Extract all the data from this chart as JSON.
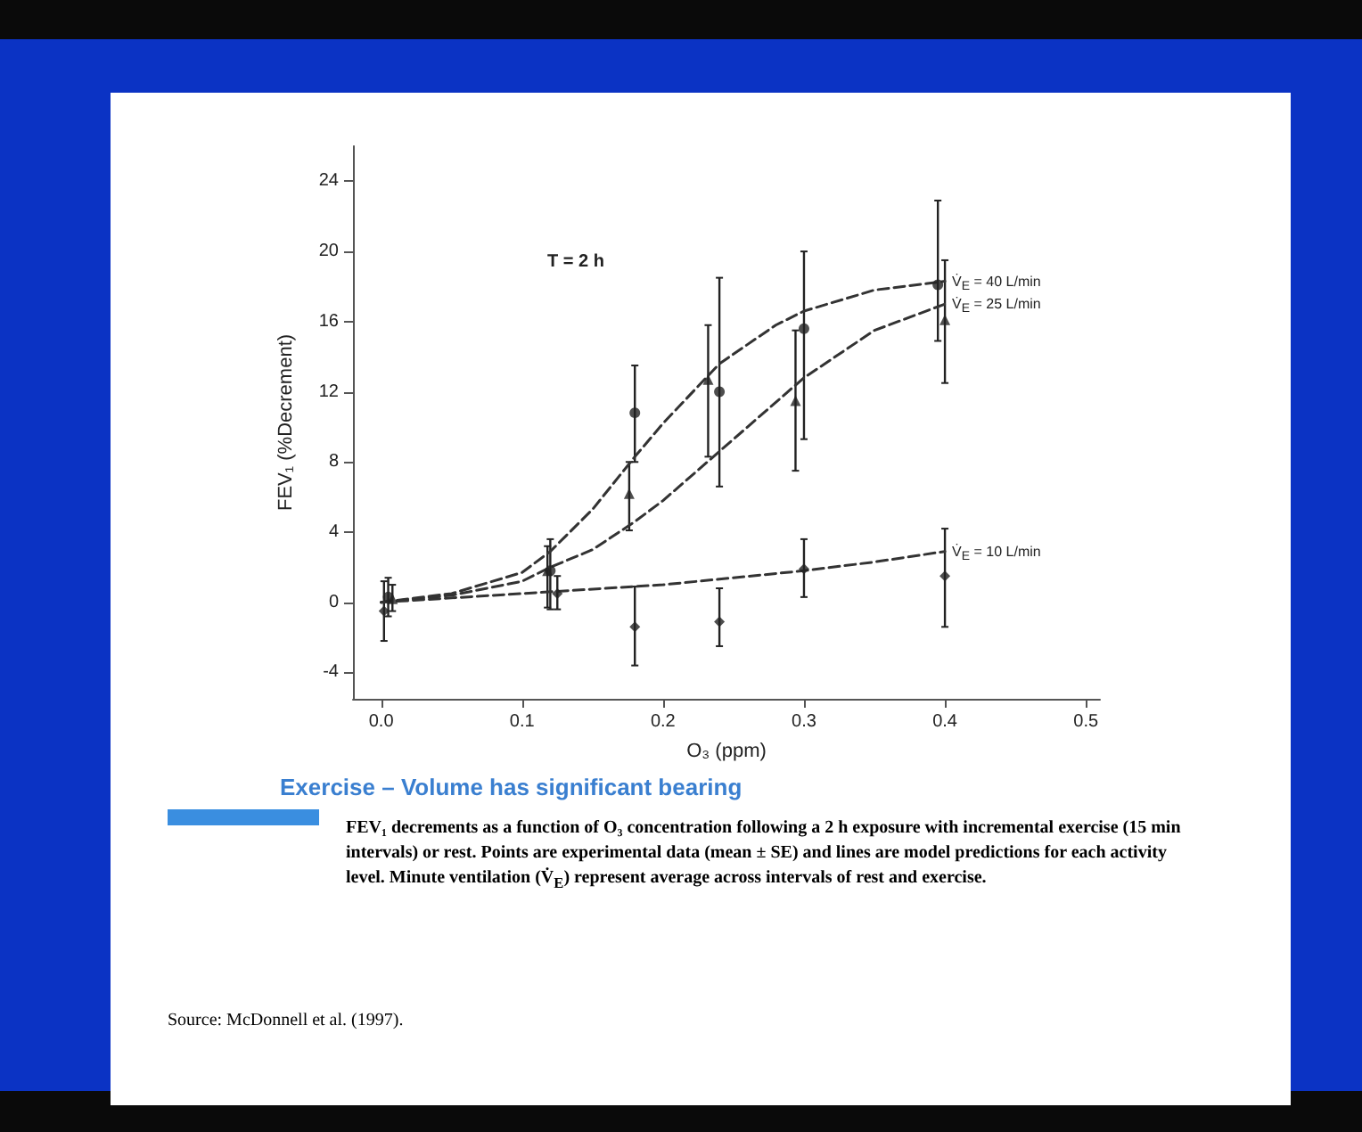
{
  "chart_data": {
    "type": "scatter",
    "subtitle": "Exercise – Volume has significant bearing",
    "xlabel": "O₃ (ppm)",
    "ylabel": "FEV₁ (%Decrement)",
    "xlim": [
      -0.02,
      0.51
    ],
    "xticks": [
      {
        "value": 0,
        "label": "0.0"
      },
      0.1,
      0.2,
      0.3,
      0.4,
      {
        "value": 0.5,
        "label": "0.5"
      }
    ],
    "ylim": [
      -5.5,
      26
    ],
    "yticks": [
      -4,
      0,
      4,
      8,
      12,
      16,
      20,
      24
    ],
    "grid": false,
    "annotations": [
      "T = 2 h",
      "FEV₁ decrements as a function of O₃ concentration following a 2 h exposure with incremental exercise (15 min intervals) or rest.  Points are experimental data (mean ± SE) and lines are model predictions for each activity level.  Minute ventilation (V̇$_{E}$) represent average across intervals of rest and exercise.",
      "Source: McDonnell et al. (1997)."
    ],
    "series": [
      {
        "type": "line",
        "name": "V̇$_{E}$ = 40 L/min",
        "color": "#333333",
        "line_style": "dashed",
        "marker": "none",
        "x": [
          0,
          0.05,
          0.1,
          0.12,
          0.15,
          0.18,
          0.2,
          0.24,
          0.28,
          0.3,
          0.35,
          0.4
        ],
        "values": [
          0,
          0.5,
          1.7,
          2.9,
          5.3,
          8.3,
          10.2,
          13.6,
          15.8,
          16.6,
          17.8,
          18.3
        ]
      },
      {
        "type": "line",
        "name": "V̇$_{E}$ = 25 L/min",
        "color": "#333333",
        "line_style": "dashed",
        "marker": "none",
        "x": [
          0,
          0.05,
          0.1,
          0.12,
          0.15,
          0.18,
          0.2,
          0.24,
          0.28,
          0.3,
          0.35,
          0.4
        ],
        "values": [
          0,
          0.4,
          1.2,
          2,
          3,
          4.6,
          5.8,
          8.6,
          11.4,
          12.8,
          15.5,
          17
        ]
      },
      {
        "type": "line",
        "name": "V̇$_{E}$ = 10 L/min",
        "color": "#333333",
        "line_style": "dashed",
        "marker": "none",
        "x": [
          0,
          0.1,
          0.2,
          0.3,
          0.35,
          0.4
        ],
        "values": [
          0,
          0.5,
          1,
          1.8,
          2.3,
          2.9
        ]
      },
      {
        "color": "#222222",
        "marker": "circle",
        "x": [
          0.005,
          0.12,
          0.18,
          0.24,
          0.3,
          0.395
        ],
        "values": [
          0.3,
          1.8,
          10.8,
          12,
          15.6,
          18.1
        ],
        "errors": [
          [
            -0.8,
            1.4
          ],
          [
            -0.4,
            3.6
          ],
          [
            8,
            13.5
          ],
          [
            6.6,
            18.5
          ],
          [
            9.3,
            20
          ],
          [
            14.9,
            22.9
          ]
        ]
      },
      {
        "color": "#222222",
        "marker": "triangle",
        "x": [
          0.008,
          0.118,
          0.176,
          0.232,
          0.294,
          0.4
        ],
        "values": [
          0.2,
          1.8,
          6.2,
          12.7,
          11.5,
          16.1
        ],
        "errors": [
          [
            -0.5,
            1
          ],
          [
            -0.3,
            3.2
          ],
          [
            4.1,
            8
          ],
          [
            8.3,
            15.8
          ],
          [
            7.5,
            15.5
          ],
          [
            12.5,
            19.5
          ]
        ]
      },
      {
        "color": "#222222",
        "marker": "diamond",
        "x": [
          0.002,
          0.125,
          0.18,
          0.24,
          0.3,
          0.4
        ],
        "values": [
          -0.5,
          0.5,
          -1.4,
          -1.1,
          1.9,
          1.5
        ],
        "errors": [
          [
            -2.2,
            1.2
          ],
          [
            -0.4,
            1.5
          ],
          [
            -3.6,
            0.9
          ],
          [
            -2.5,
            0.8
          ],
          [
            0.3,
            3.6
          ],
          [
            -1.4,
            4.2
          ]
        ]
      }
    ]
  }
}
